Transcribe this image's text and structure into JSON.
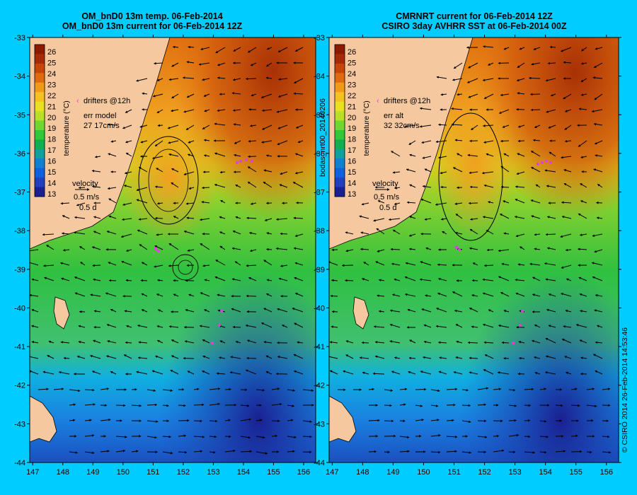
{
  "panels": [
    {
      "title_line1": "OM_bnD0 13m temp. 06-Feb-2014",
      "title_line2": "OM_bnD0 13m current for 06-Feb-2014 12Z",
      "err_label": "err model",
      "err_value": "27 17cm/s"
    },
    {
      "title_line1": "CMRNRT current for 06-Feb-2014 12Z",
      "title_line2": "CSIRO 3day AVHRR SST at 06-Feb-2014 00Z",
      "err_label": "err alt",
      "err_value": "32 32cm/s"
    }
  ],
  "colorbar": {
    "ticks": [
      "26",
      "25",
      "24",
      "23",
      "22",
      "21",
      "20",
      "19",
      "18",
      "17",
      "16",
      "15",
      "14",
      "13"
    ],
    "label": "temperature (°C)",
    "colors": [
      "#8b1a00",
      "#a52a05",
      "#c8450a",
      "#e06a10",
      "#f09a18",
      "#f5c020",
      "#e8e020",
      "#b8e028",
      "#70d830",
      "#30c838",
      "#10b050",
      "#10a0a0",
      "#1080d0",
      "#1060e0",
      "#2040c0",
      "#1a2090"
    ]
  },
  "legend": {
    "drifters": "drifters @12h",
    "velocity_title": "velocity",
    "velocity_scale": "0.5 m/s",
    "velocity_time": "0.5 d"
  },
  "axes": {
    "y_ticks": [
      "-33",
      "-34",
      "-35",
      "-36",
      "-37",
      "-38",
      "-39",
      "-40",
      "-41",
      "-42",
      "-43",
      "-44"
    ],
    "x_ticks": [
      "147",
      "148",
      "149",
      "150",
      "151",
      "152",
      "153",
      "154",
      "155",
      "156"
    ]
  },
  "side_labels": {
    "left_panel_id": "bodas_nrt00_20140206",
    "credit": "© CSIRO 2014   26-Feb-2014 14:53:46"
  },
  "colors": {
    "background": "#00ccff",
    "land": "#f5c8a0",
    "drifter": "#e040e0"
  }
}
